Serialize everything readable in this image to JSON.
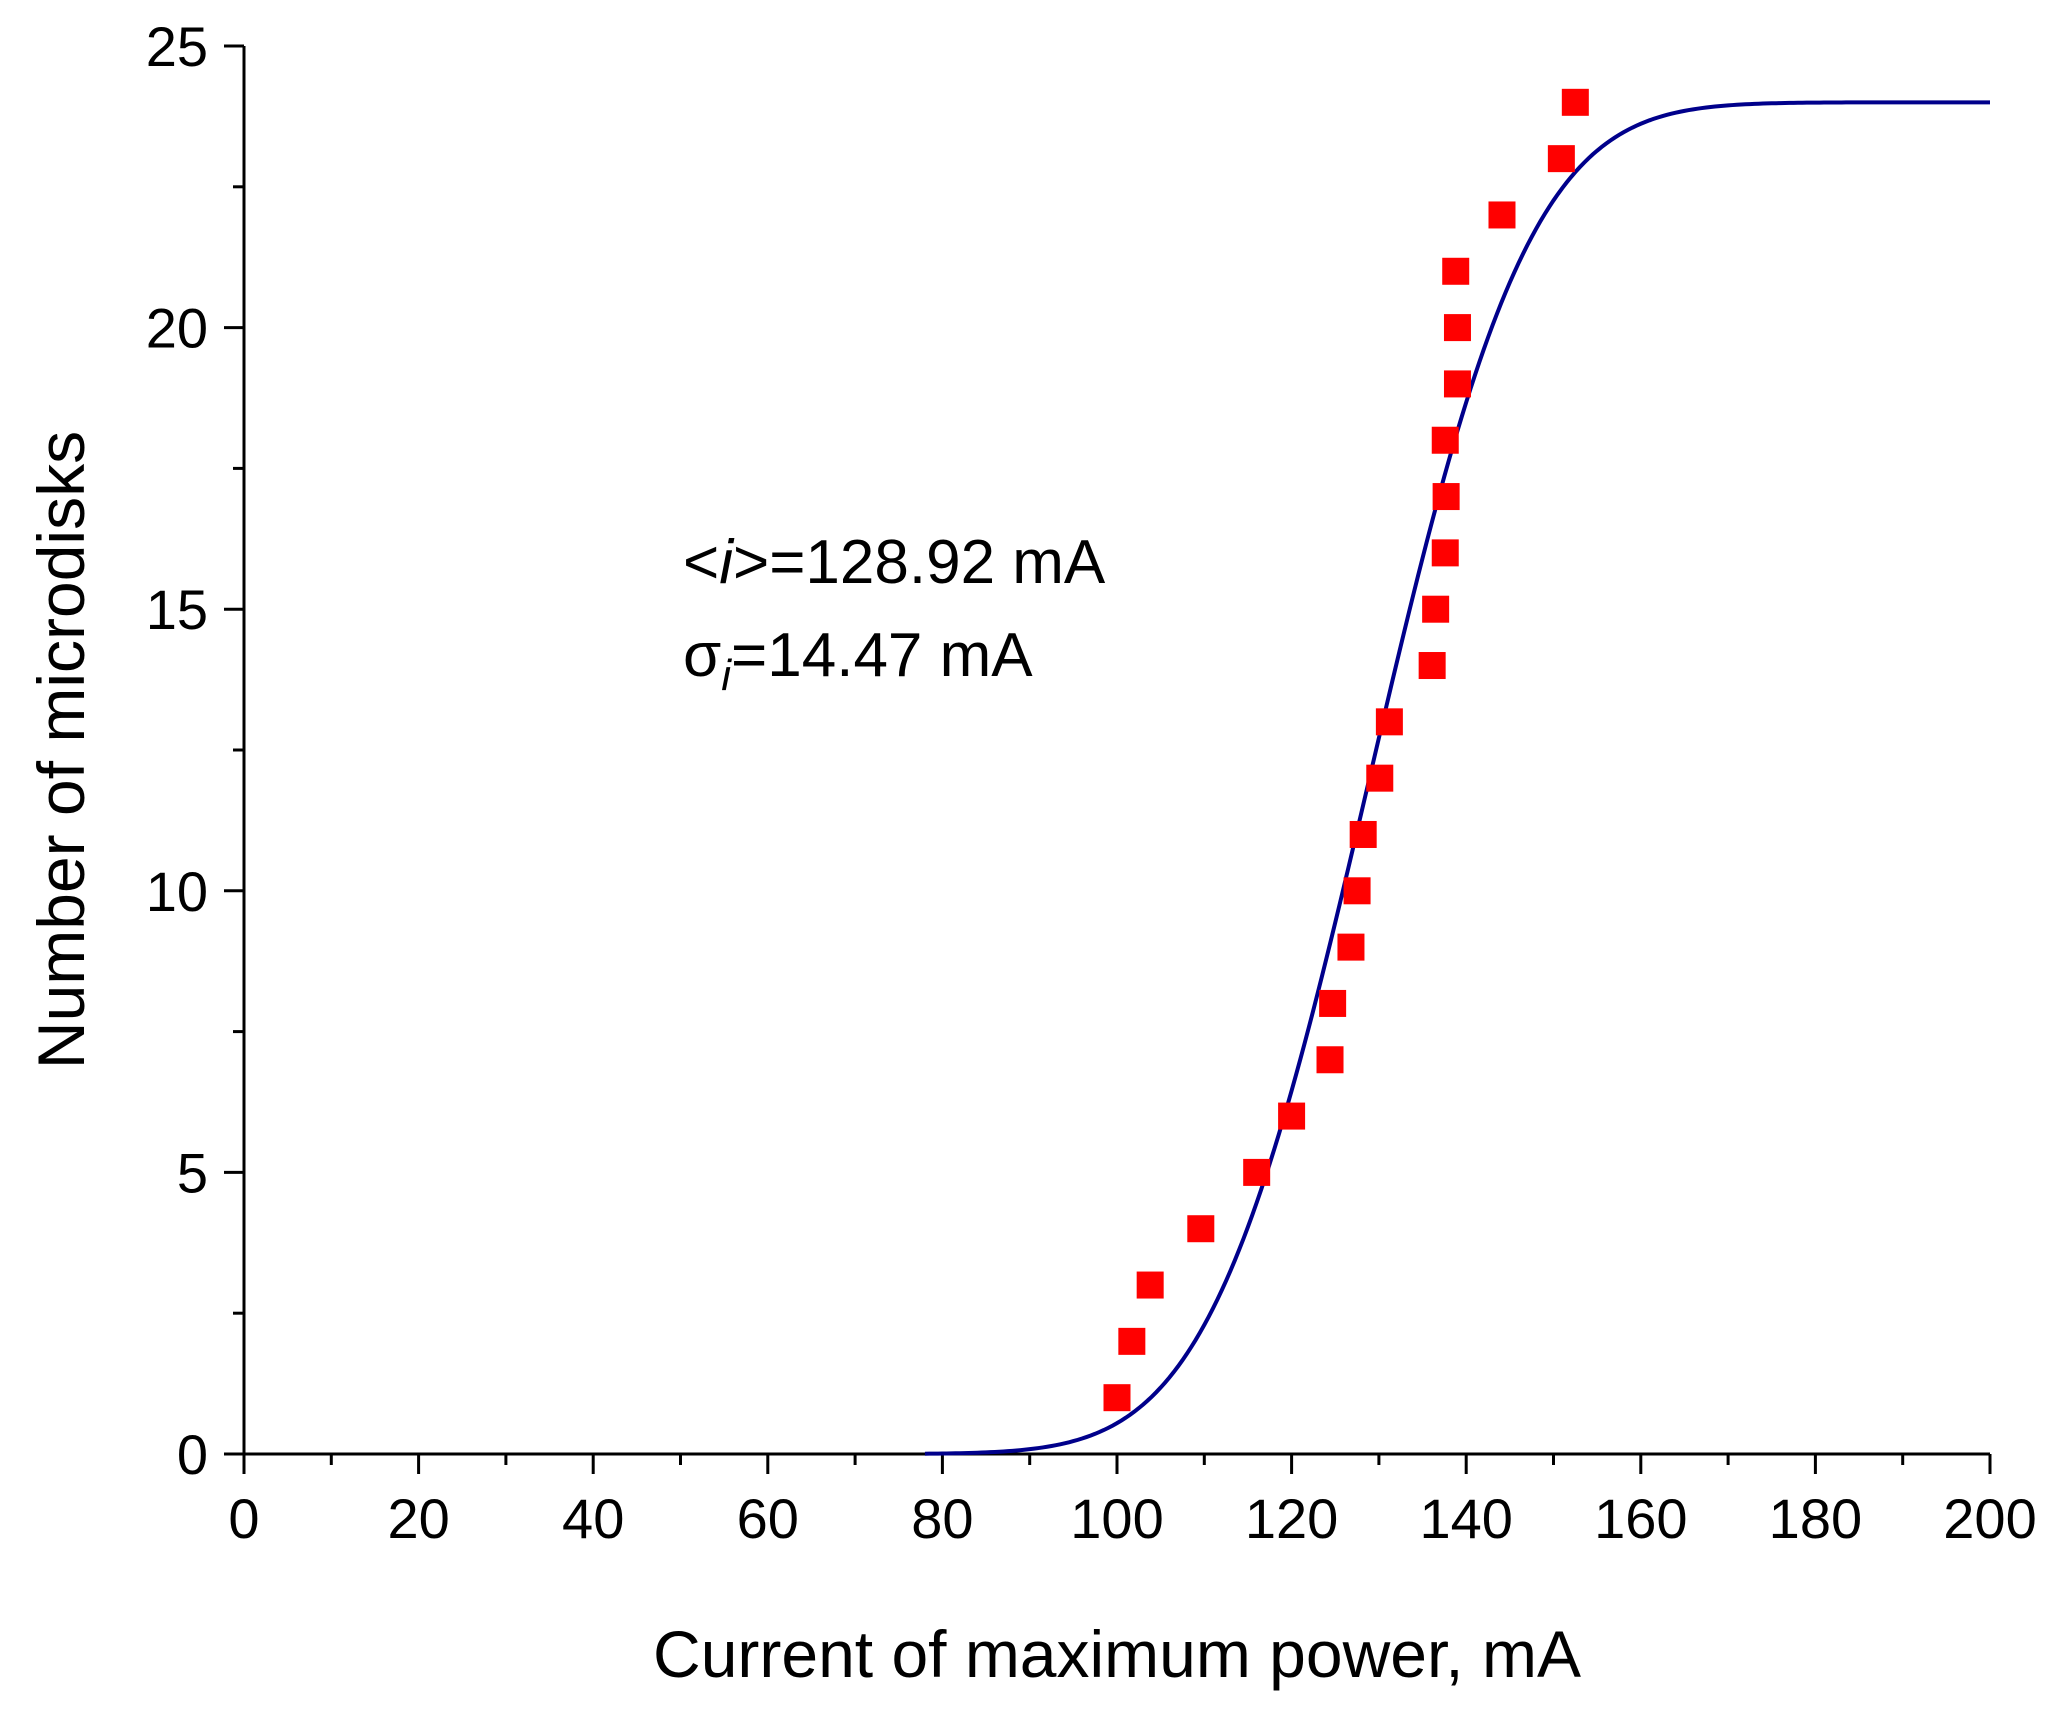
{
  "chart_data": {
    "type": "scatter",
    "title": "",
    "xlabel": "Current of maximum power, mA",
    "ylabel": "Number of microdisks",
    "xlim": [
      0,
      200
    ],
    "ylim": [
      0,
      25
    ],
    "x_ticks": [
      0,
      20,
      40,
      60,
      80,
      100,
      120,
      140,
      160,
      180,
      200
    ],
    "y_ticks": [
      0,
      5,
      10,
      15,
      20,
      25
    ],
    "x_minor_step": 10,
    "y_minor_step": 2.5,
    "grid": false,
    "series": [
      {
        "kind": "scatter",
        "marker": "square",
        "color": "#ff0000",
        "x": [
          100.0,
          101.7,
          103.8,
          109.6,
          116.0,
          120.0,
          124.4,
          124.7,
          126.8,
          127.5,
          128.2,
          130.1,
          131.2,
          136.1,
          136.5,
          137.6,
          137.7,
          137.6,
          139.0,
          139.0,
          138.8,
          144.1,
          150.9,
          152.5
        ],
        "y": [
          1,
          2,
          3,
          4,
          5,
          6,
          7,
          8,
          9,
          10,
          11,
          12,
          13,
          14,
          15,
          16,
          17,
          18,
          19,
          20,
          21,
          22,
          23,
          24
        ]
      },
      {
        "kind": "line",
        "fit": "normal-cdf",
        "color": "#00008b",
        "amplitude": 24,
        "x_start": 78,
        "x_end": 200
      }
    ],
    "annotations": [
      {
        "prefix": "<",
        "italic": "i",
        "suffix": ">=128.92 mA"
      },
      {
        "symbol": "σ",
        "subscript": "i",
        "suffix": "=14.47 mA"
      }
    ],
    "mean": 128.92,
    "sigma": 14.47
  }
}
